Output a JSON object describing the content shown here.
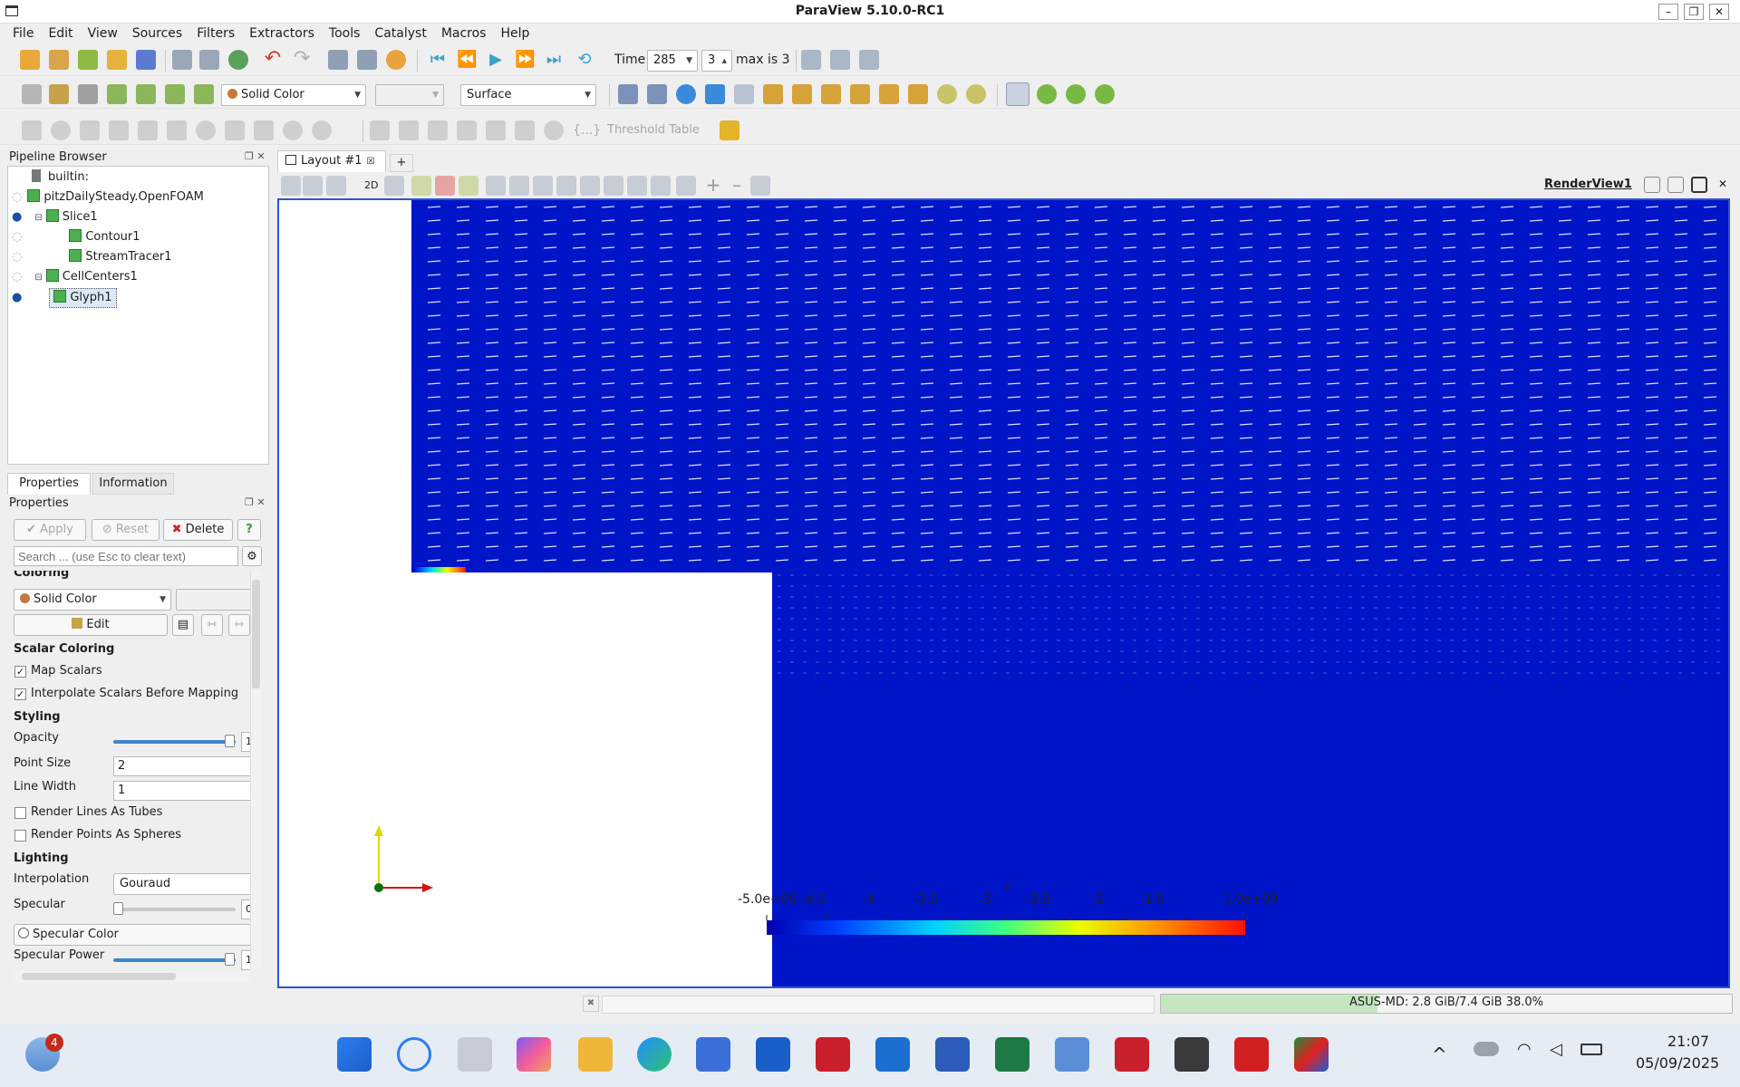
{
  "window": {
    "title": "ParaView 5.10.0-RC1"
  },
  "menu": [
    "File",
    "Edit",
    "View",
    "Sources",
    "Filters",
    "Extractors",
    "Tools",
    "Catalyst",
    "Macros",
    "Help"
  ],
  "toolbar1": {
    "time_label": "Time:",
    "time_value": "285",
    "step_value": "3",
    "max_label": "max is 3"
  },
  "toolbar2": {
    "coloring": "Solid Color",
    "representation": "Surface"
  },
  "toolbar3": {
    "threshold_table": "Threshold Table"
  },
  "pipeline": {
    "title": "Pipeline Browser",
    "items": [
      {
        "label": "builtin:"
      },
      {
        "label": "pitzDailySteady.OpenFOAM"
      },
      {
        "label": "Slice1"
      },
      {
        "label": "Contour1"
      },
      {
        "label": "StreamTracer1"
      },
      {
        "label": "CellCenters1"
      },
      {
        "label": "Glyph1"
      }
    ]
  },
  "tabs": {
    "properties": "Properties",
    "information": "Information"
  },
  "properties": {
    "title": "Properties",
    "apply": "Apply",
    "reset": "Reset",
    "delete": "Delete",
    "help": "?",
    "search_placeholder": "Search ... (use Esc to clear text)",
    "coloring_header": "Coloring",
    "coloring_value": "Solid Color",
    "edit": "Edit",
    "scalar_coloring": "Scalar Coloring",
    "map_scalars": "Map Scalars",
    "interpolate": "Interpolate Scalars Before Mapping",
    "styling": "Styling",
    "opacity": "Opacity",
    "opacity_value": "1",
    "point_size": "Point Size",
    "point_size_value": "2",
    "line_width": "Line Width",
    "line_width_value": "1",
    "render_tubes": "Render Lines As Tubes",
    "render_spheres": "Render Points As Spheres",
    "lighting": "Lighting",
    "interpolation": "Interpolation",
    "interpolation_value": "Gouraud",
    "specular": "Specular",
    "specular_value": "0",
    "specular_color": "Specular Color",
    "specular_power": "Specular Power",
    "specular_power_value": "1"
  },
  "layout": {
    "tab": "Layout #1",
    "plus": "+",
    "view_name": "RenderView1",
    "mode_2d": "2D"
  },
  "colorbar": {
    "labels": [
      "-5.0e+00",
      "-4.5",
      "-4",
      "-3.5",
      "-3",
      "-2.5",
      "-2",
      "-1.5",
      "1.0e+00"
    ],
    "title": "p"
  },
  "status": {
    "memory": "ASUS-MD: 2.8 GiB/7.4 GiB 38.0%",
    "memory_fraction": 0.38
  },
  "taskbar": {
    "weather_badge": "4",
    "time": "21:07",
    "date": "05/09/2025"
  }
}
